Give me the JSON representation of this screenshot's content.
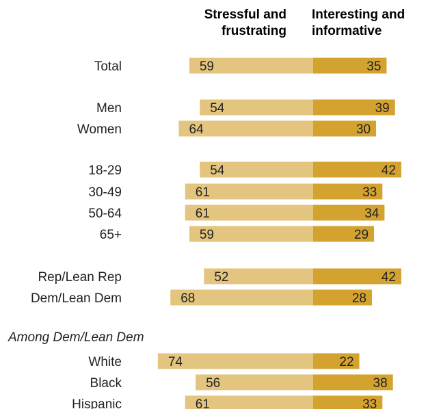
{
  "chart_data": {
    "type": "bar",
    "orientation": "horizontal-diverging",
    "series": [
      {
        "name": "Stressful and frustrating",
        "color": "#e3c57f"
      },
      {
        "name": "Interesting and informative",
        "color": "#d3a22f"
      }
    ],
    "column_headers": {
      "left": [
        "Stressful and",
        "frustrating"
      ],
      "right": [
        "Interesting and",
        "informative"
      ]
    },
    "rows": [
      {
        "label": "Total",
        "left": 59,
        "right": 35
      },
      {
        "label": "Men",
        "left": 54,
        "right": 39
      },
      {
        "label": "Women",
        "left": 64,
        "right": 30
      },
      {
        "label": "18-29",
        "left": 54,
        "right": 42
      },
      {
        "label": "30-49",
        "left": 61,
        "right": 33
      },
      {
        "label": "50-64",
        "left": 61,
        "right": 34
      },
      {
        "label": "65+",
        "left": 59,
        "right": 29
      },
      {
        "label": "Rep/Lean Rep",
        "left": 52,
        "right": 42
      },
      {
        "label": "Dem/Lean Dem",
        "left": 68,
        "right": 28
      },
      {
        "label": "White",
        "left": 74,
        "right": 22
      },
      {
        "label": "Black",
        "left": 56,
        "right": 38
      },
      {
        "label": "Hispanic",
        "left": 61,
        "right": 33
      }
    ],
    "group_label": "Among Dem/Lean Dem"
  }
}
